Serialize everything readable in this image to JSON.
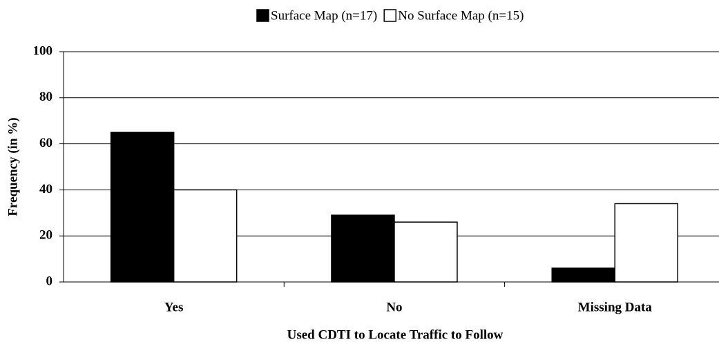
{
  "chart_data": {
    "type": "bar",
    "categories": [
      "Yes",
      "No",
      "Missing Data"
    ],
    "series": [
      {
        "name": "Surface Map (n=17)",
        "color": "#000000",
        "values": [
          65,
          29,
          6
        ]
      },
      {
        "name": "No Surface Map (n=15)",
        "color": "#ffffff",
        "values": [
          40,
          26,
          34
        ]
      }
    ],
    "xlabel": "Used CDTI to Locate Traffic to Follow",
    "ylabel": "Frequency (in %)",
    "ylim": [
      0,
      100
    ],
    "yticks": [
      0,
      20,
      40,
      60,
      80,
      100
    ],
    "grid": true,
    "legend": "top"
  }
}
